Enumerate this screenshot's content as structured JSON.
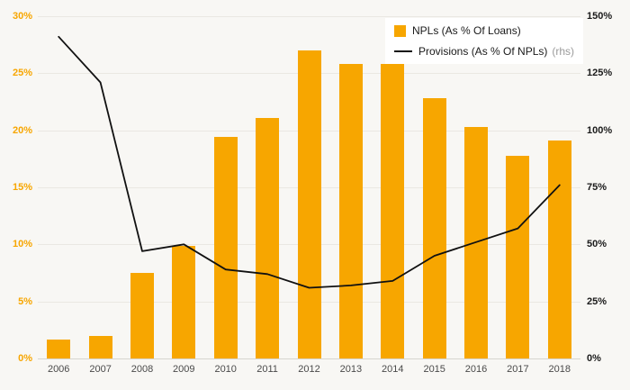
{
  "chart_data": {
    "type": "combo",
    "title": "",
    "categories": [
      "2006",
      "2007",
      "2008",
      "2009",
      "2010",
      "2011",
      "2012",
      "2013",
      "2014",
      "2015",
      "2016",
      "2017",
      "2018"
    ],
    "series": [
      {
        "name": "NPLs (As % Of Loans)",
        "type": "bar",
        "axis": "left",
        "color": "#F7A600",
        "values": [
          1.7,
          2.0,
          7.5,
          9.9,
          19.4,
          21.1,
          27.0,
          25.8,
          25.8,
          22.8,
          20.3,
          17.8,
          19.1
        ]
      },
      {
        "name": "Provisions (As % Of NPLs)",
        "type": "line",
        "axis": "right",
        "color": "#111111",
        "values": [
          141,
          121,
          47,
          50,
          39,
          37,
          31,
          32,
          34,
          45,
          51,
          57,
          76
        ]
      }
    ],
    "left_axis": {
      "max": 30,
      "min": 0,
      "color": "#F7A600",
      "ticks": [
        {
          "v": 30,
          "l": "30%"
        },
        {
          "v": 25,
          "l": "25%"
        },
        {
          "v": 20,
          "l": "20%"
        },
        {
          "v": 15,
          "l": "15%"
        },
        {
          "v": 10,
          "l": "10%"
        },
        {
          "v": 5,
          "l": "5%"
        },
        {
          "v": 0,
          "l": "0%"
        }
      ]
    },
    "right_axis": {
      "max": 150,
      "min": 0,
      "color": "#1a1a1a",
      "ticks": [
        {
          "v": 150,
          "l": "150%"
        },
        {
          "v": 125,
          "l": "125%"
        },
        {
          "v": 100,
          "l": "100%"
        },
        {
          "v": 75,
          "l": "75%"
        },
        {
          "v": 50,
          "l": "50%"
        },
        {
          "v": 25,
          "l": "25%"
        },
        {
          "v": 0,
          "l": "0%"
        }
      ]
    },
    "legend": [
      {
        "label": "NPLs (As % Of Loans)",
        "suffix": ""
      },
      {
        "label": "Provisions (As % Of NPLs)",
        "suffix": "(rhs)"
      }
    ],
    "grid": true,
    "legend_position": "top-right",
    "background": "#f8f7f4"
  }
}
